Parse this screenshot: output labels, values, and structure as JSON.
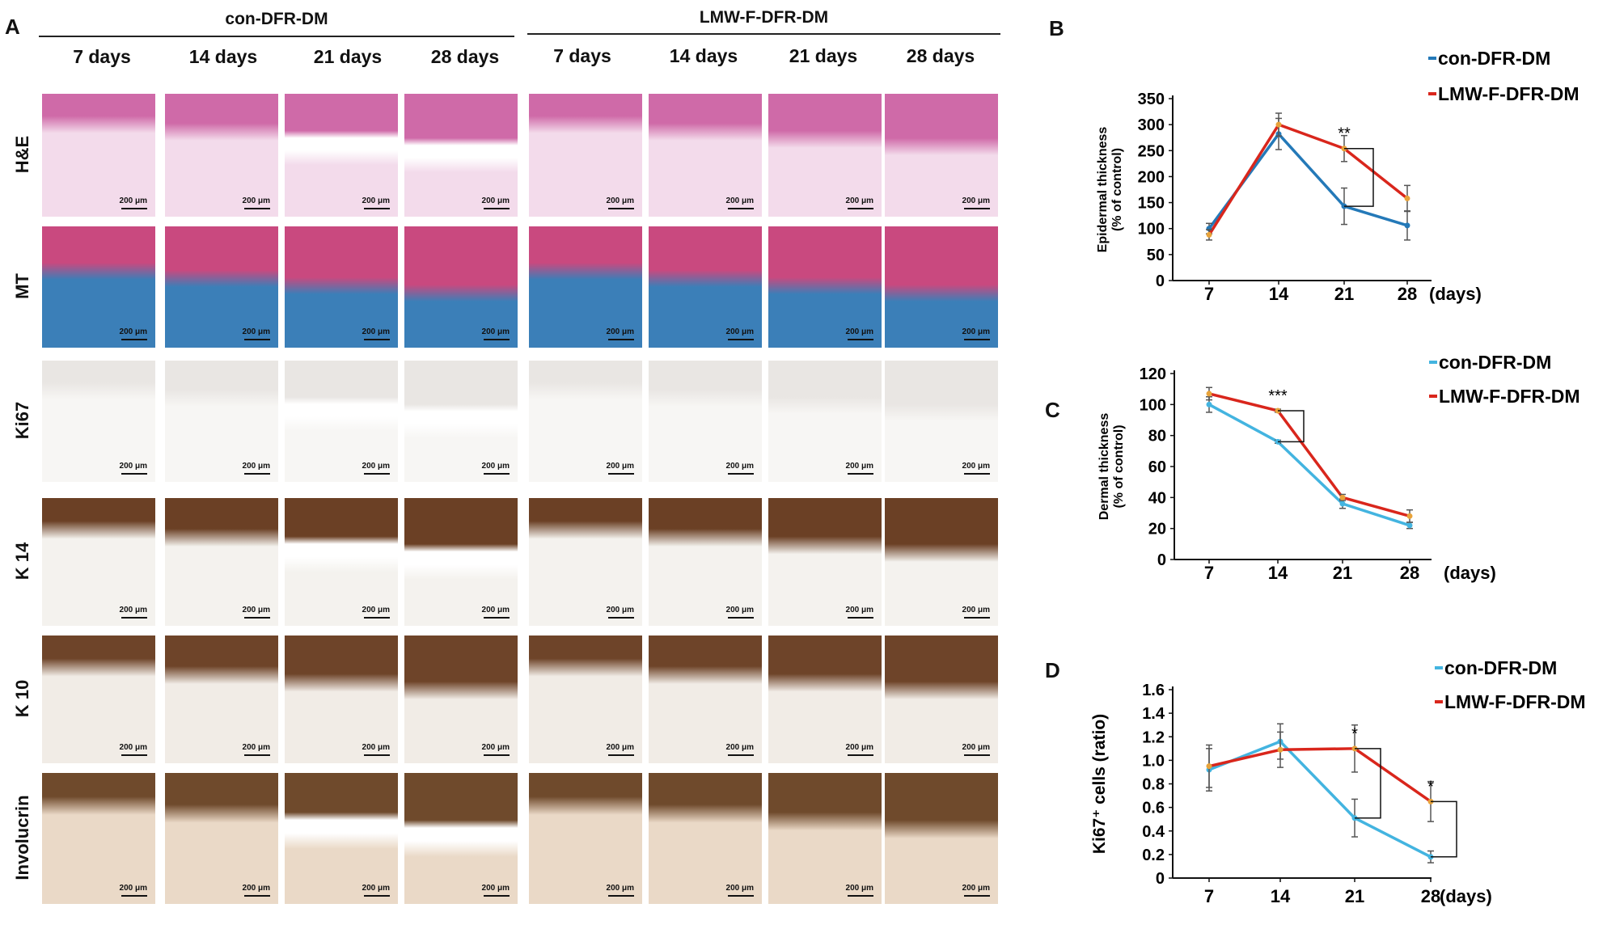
{
  "panel_labels": [
    "A",
    "B",
    "C",
    "D"
  ],
  "groups": [
    "con-DFR-DM",
    "LMW-F-DFR-DM"
  ],
  "days_columns": [
    "7 days",
    "14 days",
    "21 days",
    "28 days"
  ],
  "stains": [
    {
      "name": "H&E",
      "palette": "he"
    },
    {
      "name": "MT",
      "palette": "mt"
    },
    {
      "name": "Ki67",
      "palette": "ki"
    },
    {
      "name": "K 14",
      "palette": "k14"
    },
    {
      "name": "K 10",
      "palette": "k10"
    },
    {
      "name": "Involucrin",
      "palette": "inv"
    }
  ],
  "scale_bar_label": "200 μm",
  "colors": {
    "con": "#2479b8",
    "con_light": "#43b4e0",
    "lmw": "#d9261c",
    "marker": "#e8a33a",
    "he_top": "#cf6aa8",
    "he_bottom": "#f3dbeb",
    "mt_top": "#c9497f",
    "mt_bottom": "#3b7fb8",
    "ki_top": "#e9e6e3",
    "ki_bottom": "#f7f6f4",
    "k14_top": "#6b4025",
    "k14_bottom": "#f4f2ee",
    "k10_top": "#6e4429",
    "k10_bottom": "#f1ece6",
    "inv_top": "#6f4a2c",
    "inv_bottom": "#ead9c7"
  },
  "chart_data": [
    {
      "panel": "B",
      "type": "line",
      "x": [
        7,
        14,
        21,
        28
      ],
      "xlabel": "(days)",
      "ylabel": "Epidermal thickness (% of control)",
      "ylabel_lines": [
        "Epidermal thickness",
        "(% of control)"
      ],
      "ylim": [
        0,
        350
      ],
      "yticks": [
        "0",
        "50",
        "100",
        "150",
        "200",
        "250",
        "300",
        "350"
      ],
      "series": [
        {
          "name": "con-DFR-DM",
          "values": [
            100,
            282,
            143,
            106
          ],
          "errors": [
            10,
            30,
            35,
            28
          ]
        },
        {
          "name": "LMW-F-DFR-DM",
          "values": [
            88,
            300,
            254,
            158
          ],
          "errors": [
            10,
            22,
            25,
            25
          ]
        }
      ],
      "annotations": [
        {
          "x": 21,
          "text": "**"
        }
      ]
    },
    {
      "panel": "C",
      "type": "line",
      "x": [
        7,
        14,
        21,
        28
      ],
      "xlabel": "(days)",
      "ylabel": "Dermal thickness (% of control)",
      "ylabel_lines": [
        "Dermal thickness",
        "(% of control)"
      ],
      "ylim": [
        0,
        120
      ],
      "yticks": [
        "0",
        "20",
        "40",
        "60",
        "80",
        "100",
        "120"
      ],
      "series": [
        {
          "name": "con-DFR-DM",
          "values": [
            100,
            76,
            36,
            22
          ],
          "errors": [
            5,
            1,
            3,
            2
          ]
        },
        {
          "name": "LMW-F-DFR-DM",
          "values": [
            107,
            96,
            40,
            28
          ],
          "errors": [
            4,
            1,
            2,
            4
          ]
        }
      ],
      "annotations": [
        {
          "x": 14,
          "text": "***"
        }
      ]
    },
    {
      "panel": "D",
      "type": "line",
      "x": [
        7,
        14,
        21,
        28
      ],
      "xlabel": "(days)",
      "ylabel": "Ki67⁺ cells (ratio)",
      "ylabel_lines": [
        "Ki67⁺ cells (ratio)"
      ],
      "ylim": [
        0,
        1.6
      ],
      "yticks": [
        "0",
        "0.2",
        "0.4",
        "0.6",
        "0.8",
        "1.0",
        "1.2",
        "1.4",
        "1.6"
      ],
      "series": [
        {
          "name": "con-DFR-DM",
          "values": [
            0.92,
            1.16,
            0.51,
            0.18
          ],
          "errors": [
            0.18,
            0.15,
            0.16,
            0.05
          ]
        },
        {
          "name": "LMW-F-DFR-DM",
          "values": [
            0.95,
            1.09,
            1.1,
            0.65
          ],
          "errors": [
            0.18,
            0.15,
            0.2,
            0.17
          ]
        }
      ],
      "annotations": [
        {
          "x": 21,
          "text": "*"
        },
        {
          "x": 28,
          "text": "*"
        }
      ]
    }
  ]
}
